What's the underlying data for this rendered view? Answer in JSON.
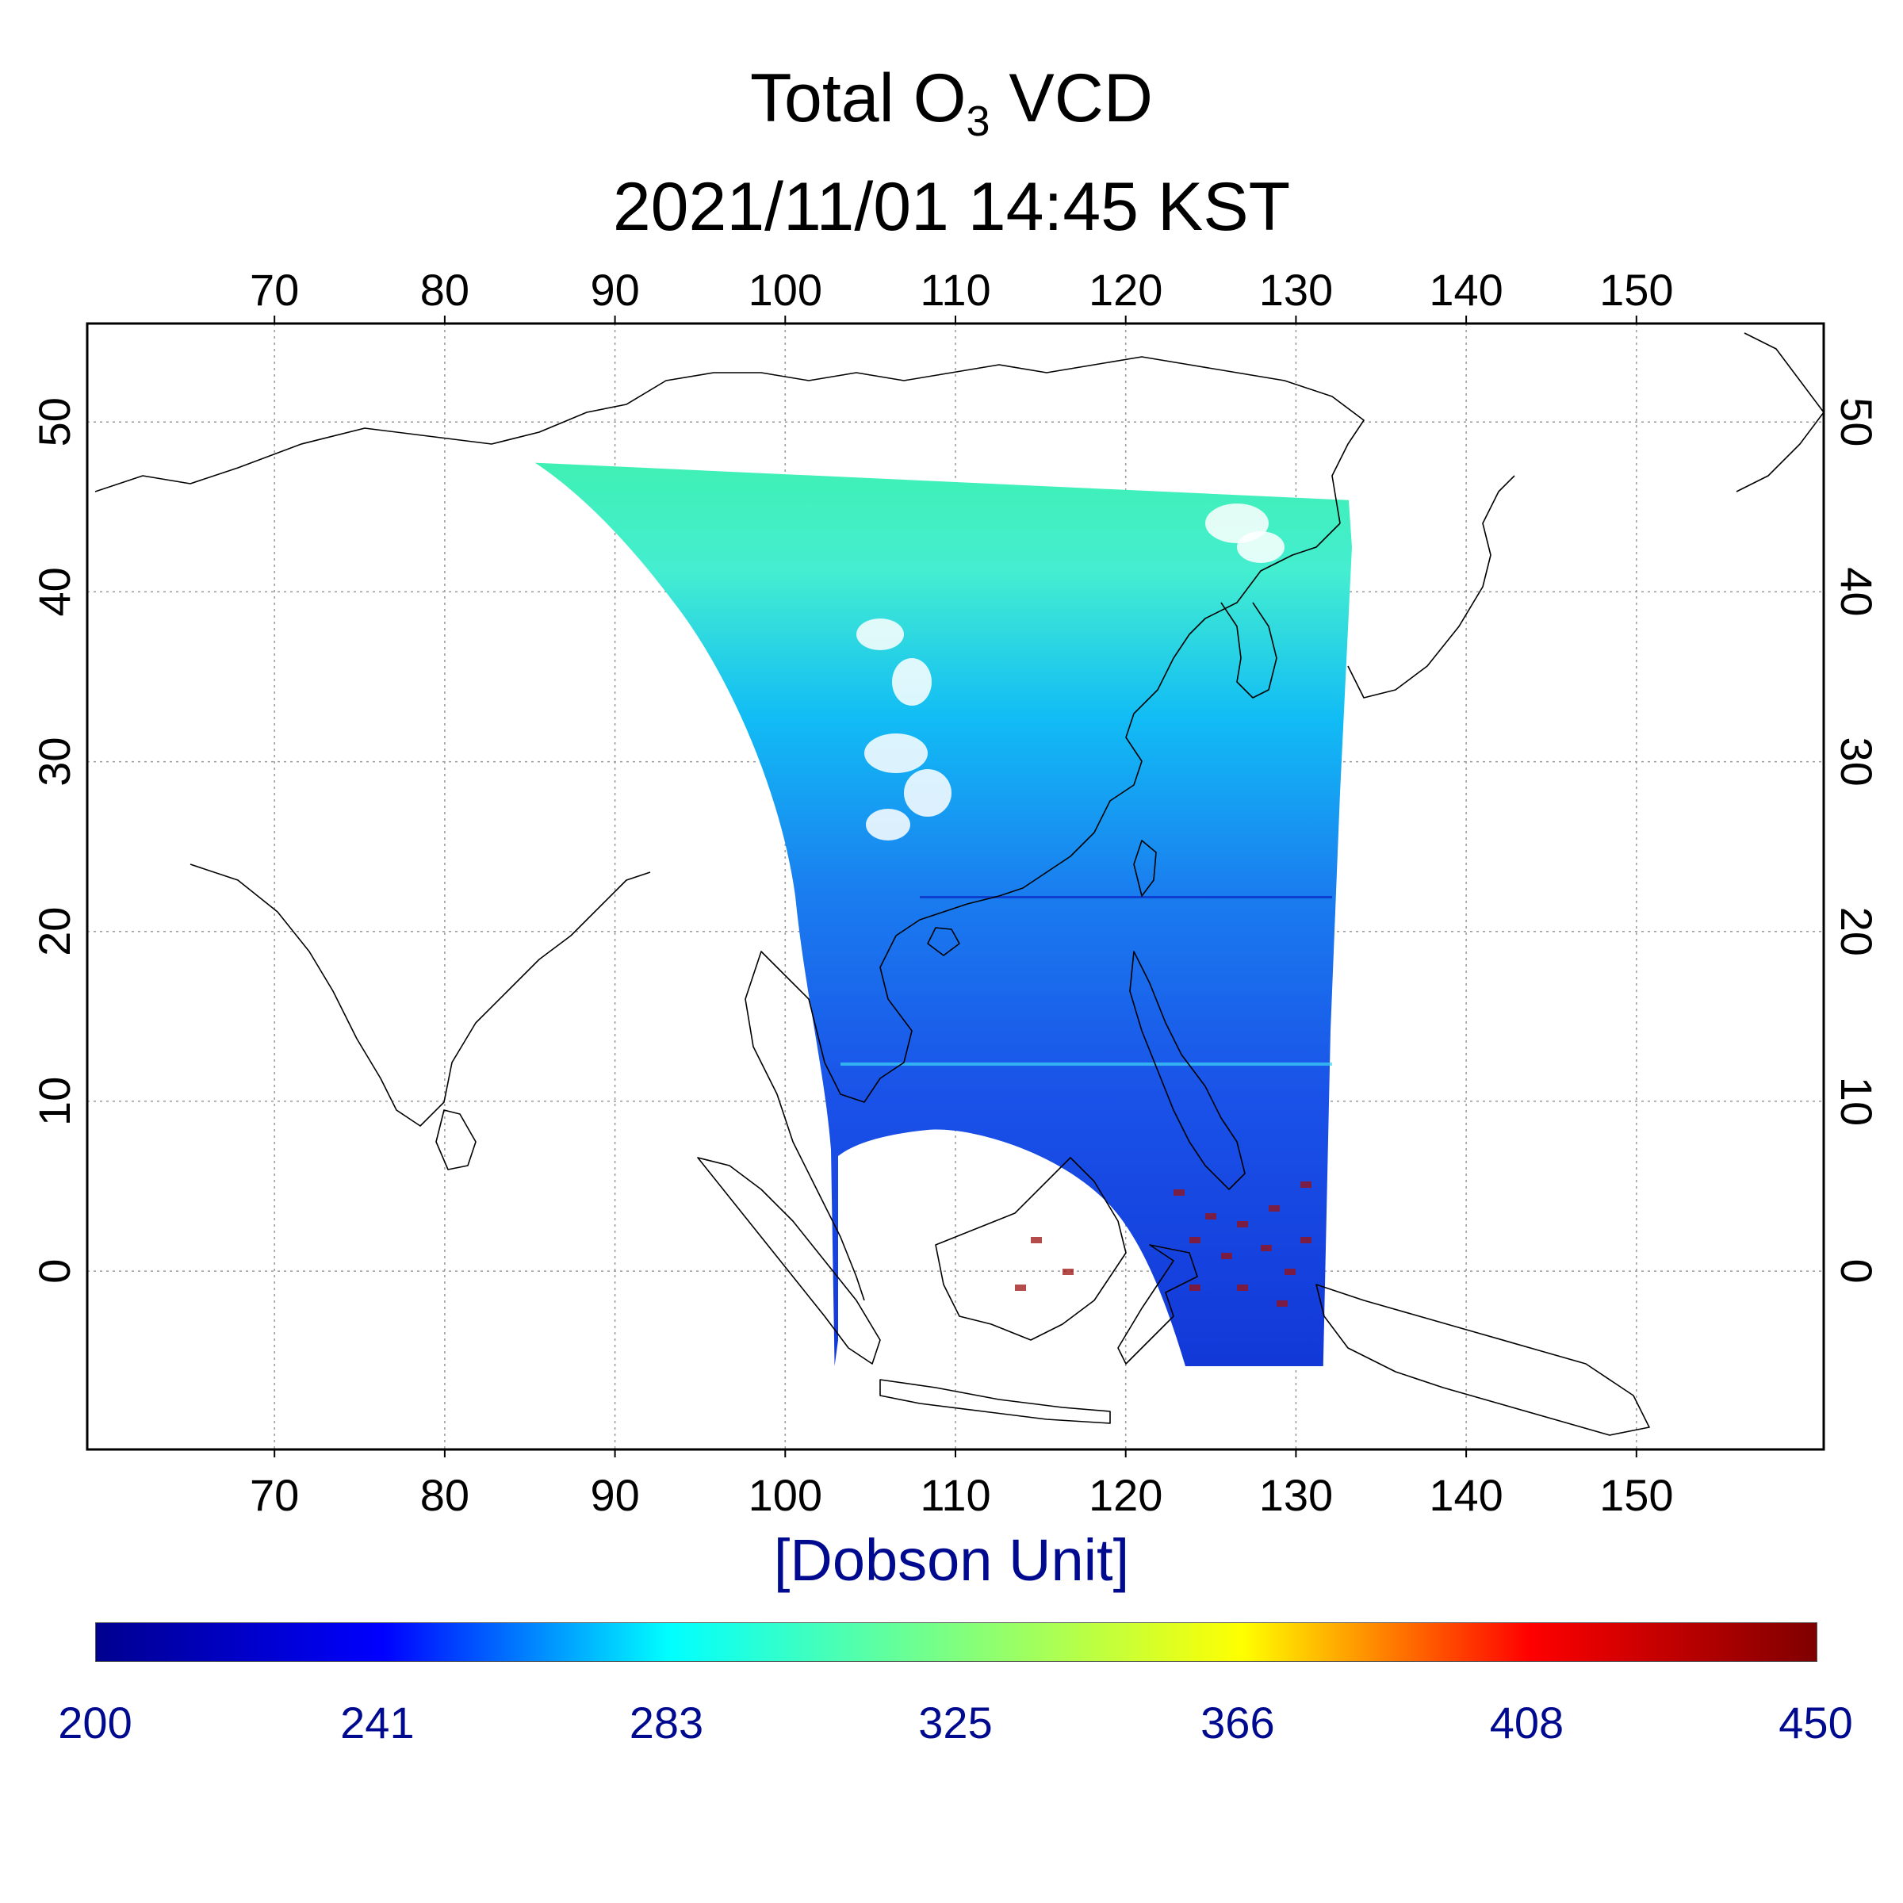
{
  "title": {
    "prefix": "Total O",
    "subscript": "3",
    "suffix": " VCD",
    "datetime": "2021/11/01 14:45 KST"
  },
  "map": {
    "lon_ticks": [
      "70",
      "80",
      "90",
      "100",
      "110",
      "120",
      "130",
      "140",
      "150"
    ],
    "lat_ticks": [
      "50",
      "40",
      "30",
      "20",
      "10",
      "0"
    ],
    "lon_range": [
      59,
      161
    ],
    "lat_range": [
      -10.5,
      55.8
    ],
    "swath_corners": {
      "north_west": [
        85.3,
        47.6
      ],
      "north_east": [
        133.1,
        45.4
      ],
      "south_east": [
        131.6,
        -5.6
      ],
      "south_west": [
        102.9,
        -5.6
      ]
    },
    "colors": {
      "north_band": "#3ff0b4",
      "mid_band": "#12bdf5",
      "south_band": "#1a52e8",
      "equator_band": "#1238d8",
      "coastline": "#000000",
      "grid": "#999999"
    }
  },
  "colorbar": {
    "unit_label": "[Dobson Unit]",
    "min": 200,
    "max": 450,
    "ticks": [
      "200",
      "241",
      "283",
      "325",
      "366",
      "408",
      "450"
    ],
    "stops": [
      "#00008f",
      "#0000ff",
      "#00ffff",
      "#7fff7f",
      "#ffff00",
      "#ff0000",
      "#7f0000"
    ]
  }
}
